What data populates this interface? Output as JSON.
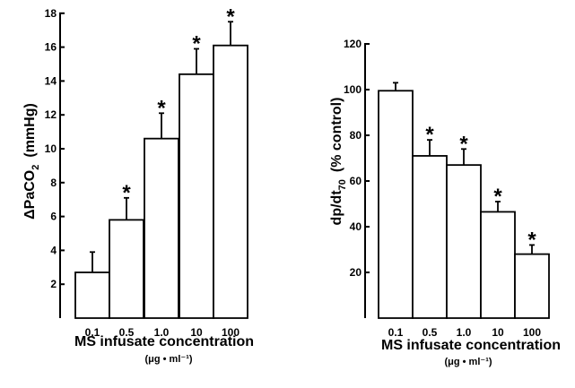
{
  "chart_data": [
    {
      "type": "bar",
      "categories": [
        "0.1",
        "0.5",
        "1.0",
        "10",
        "100"
      ],
      "values": [
        2.7,
        5.8,
        10.6,
        14.4,
        16.1
      ],
      "errors": [
        1.2,
        1.3,
        1.5,
        1.5,
        1.4
      ],
      "significant": [
        false,
        true,
        true,
        true,
        true
      ],
      "marker": "*",
      "ylabel_main": "ΔPaCO",
      "ylabel_sub": "2",
      "ylabel_suffix": "(mmHg)",
      "yticks": [
        2,
        4,
        6,
        8,
        10,
        12,
        14,
        16,
        18
      ],
      "ytick_labels": [
        "2",
        "4",
        "6",
        "8",
        "10",
        "12",
        "14",
        "16",
        "18"
      ],
      "ylim": [
        0,
        18
      ],
      "xlabel": "MS infusate concentration",
      "xunit": "(μg • ml⁻¹)"
    },
    {
      "type": "bar",
      "categories": [
        "0.1",
        "0.5",
        "1.0",
        "10",
        "100"
      ],
      "values": [
        99.5,
        71,
        67,
        46.5,
        28
      ],
      "errors": [
        3.5,
        7,
        7,
        4.5,
        4
      ],
      "significant": [
        false,
        true,
        true,
        true,
        true
      ],
      "marker": "*",
      "ylabel_main": "dp/dt",
      "ylabel_sub": "70",
      "ylabel_suffix": "(% control)",
      "yticks": [
        20,
        40,
        60,
        80,
        100,
        120
      ],
      "ytick_labels": [
        "20",
        "40",
        "60",
        "80",
        "100",
        "120"
      ],
      "ylim": [
        0,
        120
      ],
      "xlabel": "MS infusate concentration",
      "xunit": "(μg • ml⁻¹)"
    }
  ]
}
